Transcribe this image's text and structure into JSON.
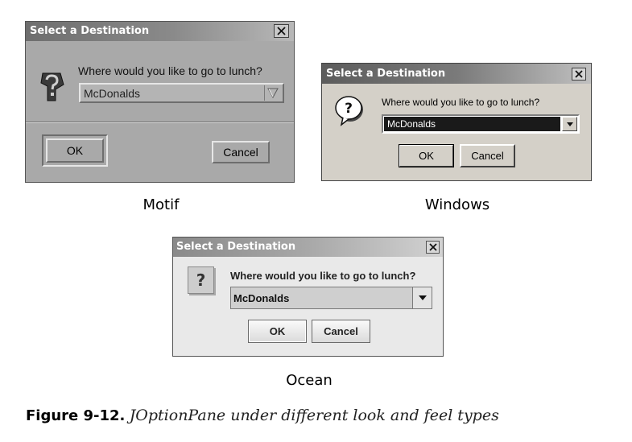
{
  "colors": {
    "motif_bg": "#a9a9a9",
    "windows_bg": "#d4d0c8",
    "ocean_bg": "#e9e9e9",
    "windows_selection": "#1a1a1a"
  },
  "icons": {
    "close": "close-icon",
    "question_motif": "question-icon",
    "question_windows": "question-bubble-icon",
    "question_ocean": "question-icon",
    "dropdown": "chevron-down-icon"
  },
  "dialogs": {
    "motif": {
      "title": "Select a Destination",
      "message": "Where would you like to go to lunch?",
      "selected": "McDonalds",
      "ok_label": "OK",
      "cancel_label": "Cancel",
      "caption": "Motif"
    },
    "windows": {
      "title": "Select a Destination",
      "message": "Where would you like to go to lunch?",
      "selected": "McDonalds",
      "ok_label": "OK",
      "cancel_label": "Cancel",
      "caption": "Windows"
    },
    "ocean": {
      "title": "Select a Destination",
      "message": "Where would you like to go to lunch?",
      "selected": "McDonalds",
      "ok_label": "OK",
      "cancel_label": "Cancel",
      "icon_glyph": "?",
      "caption": "Ocean"
    }
  },
  "figure": {
    "number": "Figure 9-12.",
    "text": "JOptionPane under different look and feel types"
  }
}
